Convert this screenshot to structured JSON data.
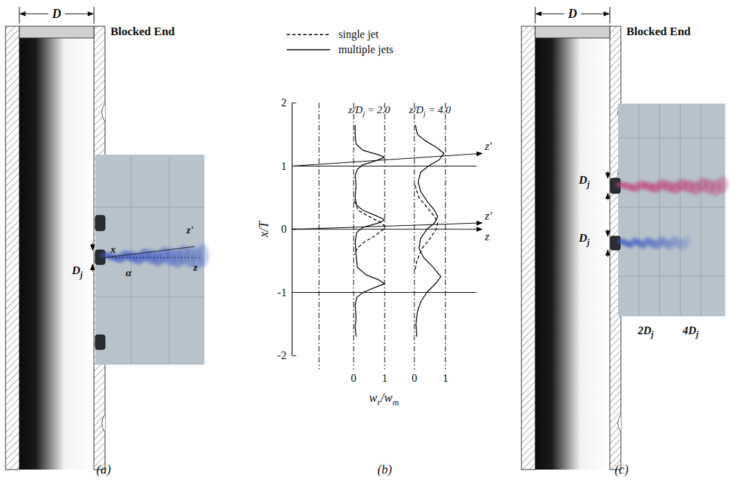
{
  "panel_a": {
    "label": "(a)",
    "diameter": "D",
    "end": "Blocked End",
    "jet_diameter": "Dj",
    "axis_x": "x",
    "axis_z_prime": "z'",
    "axis_z": "z",
    "angle": "α"
  },
  "panel_b_label": "(b)",
  "panel_c": {
    "label": "(c)",
    "diameter": "D",
    "end": "Blocked End",
    "jet_diameters": [
      "Dj",
      "Dj"
    ],
    "distances": [
      "2Dj",
      "4Dj"
    ]
  },
  "chart_data": {
    "type": "line",
    "y_label": "x/T",
    "x_label": "wr/wm",
    "ylim": [
      -2,
      2
    ],
    "yticks": [
      -2,
      -1,
      0,
      1,
      2
    ],
    "legend": "top",
    "reference_lines": [
      1,
      -1
    ],
    "annotations": [
      {
        "label": "z'",
        "y_start": 1,
        "y_end": 1.2
      },
      {
        "label": "z'",
        "y_start": 0,
        "y_end": 0.1
      },
      {
        "label": "z",
        "y_start": 0,
        "y_end": 0
      }
    ],
    "profiles": [
      {
        "title": "z/Dj = 2.0",
        "xlim": [
          0,
          1
        ],
        "xticks": [
          0,
          1
        ],
        "series": [
          {
            "name": "single jet",
            "color": "#000000",
            "line_style": "dashed",
            "x": [
              0.45,
              0.3,
              0.2,
              0.1,
              0.05,
              0,
              -0.1,
              -0.2,
              -0.3,
              -0.4
            ],
            "values": [
              0.02,
              0.15,
              0.5,
              0.9,
              1.0,
              0.95,
              0.7,
              0.35,
              0.12,
              0.03
            ]
          },
          {
            "name": "multiple jets",
            "color": "#000000",
            "line_style": "solid",
            "x": [
              1.65,
              1.5,
              1.35,
              1.25,
              1.18,
              1.14,
              1.08,
              1.02,
              0.95,
              0.85,
              0.7,
              0.5,
              0.38,
              0.3,
              0.22,
              0.15,
              0.1,
              0.03,
              -0.05,
              -0.2,
              -0.4,
              -0.6,
              -0.72,
              -0.8,
              -0.86,
              -0.92,
              -1.0,
              -1.08,
              -1.2,
              -1.4,
              -1.55,
              -1.7
            ],
            "values": [
              0.05,
              0.05,
              0.08,
              0.3,
              0.8,
              1.0,
              0.7,
              0.3,
              0.12,
              0.05,
              0.08,
              0.05,
              0.1,
              0.3,
              0.7,
              1.0,
              0.8,
              0.3,
              0.1,
              0.05,
              0.08,
              0.12,
              0.4,
              0.8,
              1.0,
              0.7,
              0.3,
              0.1,
              0.05,
              0.08,
              0.05,
              0.08
            ]
          }
        ]
      },
      {
        "title": "z/Dj = 4.0",
        "xlim": [
          0,
          1
        ],
        "xticks": [
          0,
          1
        ],
        "series": [
          {
            "name": "single jet",
            "color": "#000000",
            "line_style": "dashed",
            "x": [
              0.7,
              0.5,
              0.35,
              0.2,
              0.1,
              0,
              -0.15,
              -0.3,
              -0.5,
              -0.65
            ],
            "values": [
              0.02,
              0.15,
              0.4,
              0.65,
              0.75,
              0.7,
              0.5,
              0.25,
              0.08,
              0.02
            ]
          },
          {
            "name": "multiple jets",
            "color": "#000000",
            "line_style": "solid",
            "x": [
              1.65,
              1.5,
              1.4,
              1.3,
              1.2,
              1.1,
              1.0,
              0.9,
              0.75,
              0.6,
              0.45,
              0.3,
              0.2,
              0.1,
              0.0,
              -0.15,
              -0.3,
              -0.45,
              -0.6,
              -0.75,
              -0.85,
              -1.0,
              -1.15,
              -1.3,
              -1.5,
              -1.7
            ],
            "values": [
              0.03,
              0.1,
              0.35,
              0.7,
              0.95,
              0.8,
              0.45,
              0.2,
              0.12,
              0.2,
              0.4,
              0.65,
              0.75,
              0.65,
              0.4,
              0.2,
              0.15,
              0.3,
              0.6,
              0.85,
              0.7,
              0.4,
              0.2,
              0.1,
              0.05,
              0.08
            ]
          }
        ]
      }
    ]
  }
}
